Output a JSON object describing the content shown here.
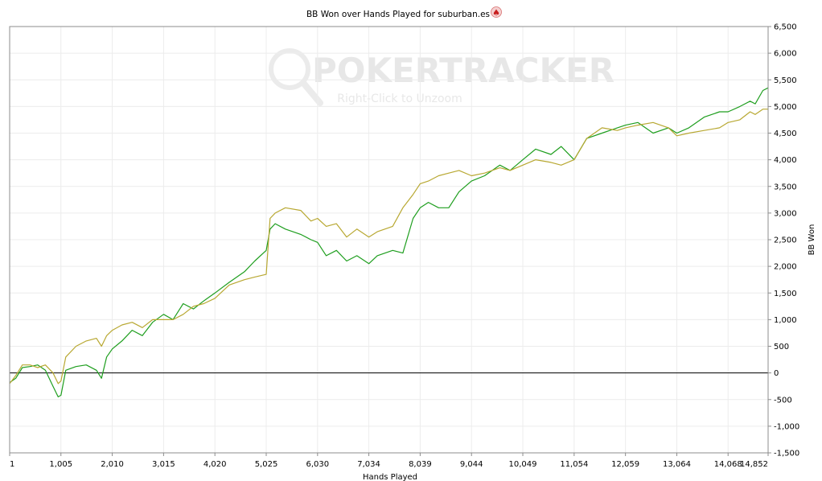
{
  "chart_data": {
    "type": "line",
    "title": "BB Won over Hands Played for suburban.es",
    "title_icon": "spade-icon",
    "xlabel": "Hands Played",
    "ylabel": "BB Won",
    "watermark": {
      "brand": "POKERTRACKER",
      "hint": "Right-Click to Unzoom"
    },
    "xlim": [
      1,
      14852
    ],
    "ylim": [
      -1500,
      6500
    ],
    "x_ticks": [
      1,
      1005,
      2010,
      3015,
      4020,
      5025,
      6030,
      7034,
      8039,
      9044,
      10049,
      11054,
      12059,
      13064,
      14068,
      14852
    ],
    "x_tick_labels": [
      "1",
      "1,005",
      "2,010",
      "3,015",
      "4,020",
      "5,025",
      "6,030",
      "7,034",
      "8,039",
      "9,044",
      "10,049",
      "11,054",
      "12,059",
      "13,064",
      "14,068",
      "14,852"
    ],
    "y_ticks": [
      -1500,
      -1000,
      -500,
      0,
      500,
      1000,
      1500,
      2000,
      2500,
      3000,
      3500,
      4000,
      4500,
      5000,
      5500,
      6000,
      6500
    ],
    "y_tick_labels": [
      "-1,500",
      "-1,000",
      "-500",
      "0",
      "500",
      "1,000",
      "1,500",
      "2,000",
      "2,500",
      "3,000",
      "3,500",
      "4,000",
      "4,500",
      "5,000",
      "5,500",
      "6,000",
      "6,500"
    ],
    "grid": true,
    "y_axis_side": "right",
    "series": [
      {
        "color": "#1e9e1e",
        "x": [
          1,
          120,
          250,
          400,
          550,
          700,
          850,
          950,
          1005,
          1100,
          1300,
          1500,
          1700,
          1800,
          1900,
          2010,
          2200,
          2400,
          2600,
          2800,
          3015,
          3200,
          3400,
          3600,
          3800,
          4020,
          4300,
          4600,
          4800,
          5025,
          5100,
          5200,
          5400,
          5700,
          5900,
          6030,
          6200,
          6400,
          6600,
          6800,
          7034,
          7200,
          7500,
          7700,
          7900,
          8039,
          8200,
          8400,
          8600,
          8800,
          9044,
          9300,
          9600,
          9800,
          10049,
          10300,
          10600,
          10800,
          11054,
          11300,
          11600,
          11900,
          12059,
          12300,
          12600,
          12900,
          13064,
          13300,
          13600,
          13900,
          14068,
          14300,
          14500,
          14600,
          14750,
          14852
        ],
        "y": [
          -180,
          -100,
          100,
          120,
          150,
          50,
          -250,
          -450,
          -420,
          50,
          120,
          150,
          50,
          -100,
          300,
          450,
          600,
          800,
          700,
          950,
          1100,
          1000,
          1300,
          1200,
          1350,
          1500,
          1700,
          1900,
          2100,
          2300,
          2700,
          2800,
          2700,
          2600,
          2500,
          2450,
          2200,
          2300,
          2100,
          2200,
          2050,
          2200,
          2300,
          2250,
          2900,
          3100,
          3200,
          3100,
          3100,
          3400,
          3600,
          3700,
          3900,
          3800,
          4000,
          4200,
          4100,
          4250,
          4000,
          4400,
          4500,
          4600,
          4650,
          4700,
          4500,
          4600,
          4500,
          4600,
          4800,
          4900,
          4900,
          5000,
          5100,
          5050,
          5300,
          5350
        ]
      },
      {
        "color": "#b8a832",
        "x": [
          1,
          120,
          250,
          400,
          550,
          700,
          850,
          950,
          1005,
          1100,
          1300,
          1500,
          1700,
          1800,
          1900,
          2010,
          2200,
          2400,
          2600,
          2800,
          3015,
          3200,
          3400,
          3600,
          3800,
          4020,
          4300,
          4600,
          4800,
          5025,
          5100,
          5200,
          5400,
          5700,
          5900,
          6030,
          6200,
          6400,
          6600,
          6800,
          7034,
          7200,
          7500,
          7700,
          7900,
          8039,
          8200,
          8400,
          8600,
          8800,
          9044,
          9300,
          9600,
          9800,
          10049,
          10300,
          10600,
          10800,
          11054,
          11300,
          11600,
          11900,
          12059,
          12300,
          12600,
          12900,
          13064,
          13300,
          13600,
          13900,
          14068,
          14300,
          14500,
          14600,
          14750,
          14852
        ],
        "y": [
          -200,
          -50,
          150,
          150,
          100,
          150,
          0,
          -200,
          -150,
          300,
          500,
          600,
          650,
          500,
          700,
          800,
          900,
          950,
          850,
          1000,
          1000,
          1000,
          1100,
          1250,
          1300,
          1400,
          1650,
          1750,
          1800,
          1850,
          2900,
          3000,
          3100,
          3050,
          2850,
          2900,
          2750,
          2800,
          2550,
          2700,
          2550,
          2650,
          2750,
          3100,
          3350,
          3550,
          3600,
          3700,
          3750,
          3800,
          3700,
          3750,
          3850,
          3800,
          3900,
          4000,
          3950,
          3900,
          4000,
          4400,
          4600,
          4550,
          4600,
          4650,
          4700,
          4600,
          4450,
          4500,
          4550,
          4600,
          4700,
          4750,
          4900,
          4850,
          4950,
          4950
        ]
      }
    ]
  }
}
